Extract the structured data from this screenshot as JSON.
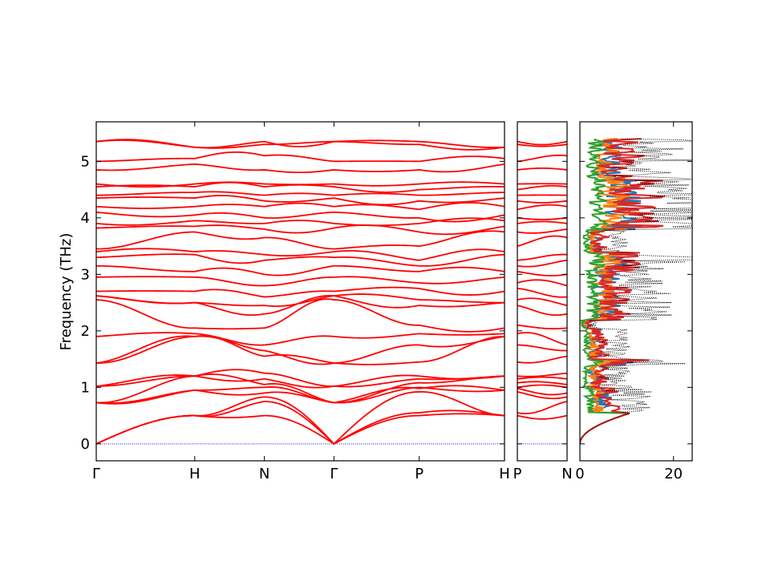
{
  "chart_data": [
    {
      "type": "line",
      "panel": "band-structure-main",
      "ylabel": "Frequency (THz)",
      "ylim": [
        -0.3,
        5.7
      ],
      "yticks": [
        0,
        1,
        2,
        3,
        4,
        5
      ],
      "xticks": [
        "Γ",
        "H",
        "N",
        "Γ",
        "P",
        "H"
      ],
      "segment_lengths": [
        1.0,
        0.7071,
        0.7071,
        0.866,
        0.866
      ],
      "zero_line": {
        "value": 0,
        "color": "#0000ff",
        "style": "dotted"
      },
      "line_color": "#ff0000",
      "bands_at_points": {
        "Γ": [
          0,
          0,
          0,
          0.73,
          0.73,
          0.73,
          1.02,
          1.02,
          1.43,
          1.43,
          1.9,
          2.55,
          2.62,
          2.62,
          2.7,
          2.95,
          3.15,
          3.3,
          3.4,
          3.45,
          3.82,
          3.9,
          4.1,
          4.2,
          4.35,
          4.4,
          4.55,
          4.6,
          4.85,
          5.0,
          5.35,
          5.35
        ],
        "H": [
          0.5,
          0.5,
          0.5,
          0.95,
          0.95,
          1.2,
          1.2,
          1.2,
          1.9,
          1.9,
          1.95,
          2.05,
          2.5,
          2.5,
          2.7,
          2.95,
          3.05,
          3.35,
          3.4,
          3.75,
          3.85,
          3.95,
          4.05,
          4.2,
          4.35,
          4.45,
          4.55,
          4.6,
          4.95,
          5.05,
          5.25,
          5.25
        ],
        "N": [
          0.5,
          0.75,
          0.83,
          0.9,
          1.0,
          1.05,
          1.15,
          1.25,
          1.55,
          1.65,
          1.75,
          2.05,
          2.3,
          2.45,
          2.6,
          2.8,
          3.0,
          3.25,
          3.35,
          3.65,
          3.8,
          3.9,
          4.0,
          4.2,
          4.3,
          4.4,
          4.55,
          4.6,
          4.85,
          5.1,
          5.3,
          5.35
        ],
        "P": [
          0.5,
          0.55,
          0.92,
          0.98,
          1.0,
          1.08,
          1.15,
          1.2,
          1.45,
          1.75,
          1.95,
          2.1,
          2.45,
          2.55,
          2.75,
          2.85,
          3.05,
          3.15,
          3.25,
          3.5,
          3.75,
          3.9,
          4.0,
          4.15,
          4.3,
          4.4,
          4.5,
          4.6,
          4.85,
          5.0,
          5.3,
          5.35
        ]
      }
    },
    {
      "type": "line",
      "panel": "band-structure-side",
      "xticks": [
        "P",
        "N"
      ],
      "ylim": [
        -0.3,
        5.7
      ],
      "line_color": "#ff0000"
    },
    {
      "type": "line",
      "panel": "partial-dos",
      "xticks": [
        0,
        20
      ],
      "xlim": [
        0,
        24
      ],
      "ylim": [
        -0.3,
        5.7
      ],
      "total_color": "#000000",
      "series": [
        {
          "color": "#1f77b4"
        },
        {
          "color": "#ff7f0e"
        },
        {
          "color": "#2ca02c"
        },
        {
          "color": "#d62728"
        }
      ]
    }
  ]
}
